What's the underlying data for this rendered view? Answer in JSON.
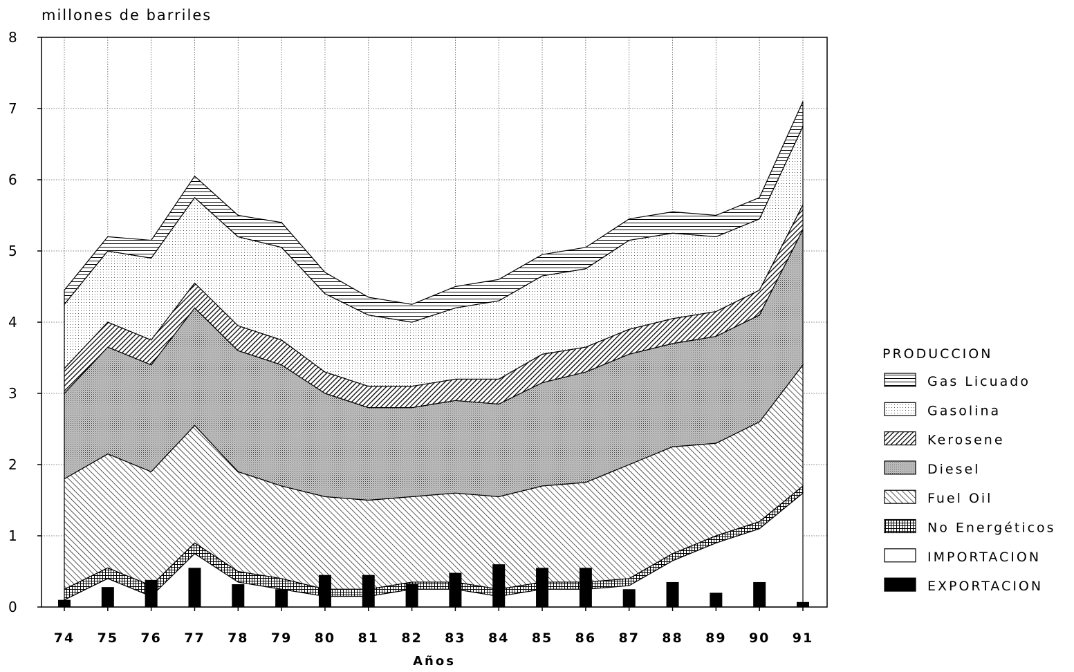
{
  "chart_data": {
    "type": "area",
    "ylabel": "millones de barriles",
    "xlabel": "Años",
    "ylim": [
      0,
      8
    ],
    "yticks": [
      "0",
      "1",
      "2",
      "3",
      "4",
      "5",
      "6",
      "7",
      "8"
    ],
    "x": [
      "74",
      "75",
      "76",
      "77",
      "78",
      "79",
      "80",
      "81",
      "82",
      "83",
      "84",
      "85",
      "86",
      "87",
      "88",
      "89",
      "90",
      "91"
    ],
    "grid": true,
    "stacked": true,
    "legend": {
      "title": "PRODUCCION",
      "placement": "right"
    },
    "series": [
      {
        "name": "IMPORTACION",
        "kind": "area",
        "color": "#ffffff",
        "values": [
          0.1,
          0.4,
          0.15,
          0.75,
          0.35,
          0.25,
          0.15,
          0.15,
          0.25,
          0.25,
          0.15,
          0.25,
          0.25,
          0.3,
          0.65,
          0.9,
          1.1,
          1.6
        ]
      },
      {
        "name": "No Energéticos",
        "kind": "area",
        "color": "#000000",
        "values": [
          0.15,
          0.15,
          0.15,
          0.15,
          0.15,
          0.15,
          0.1,
          0.1,
          0.1,
          0.1,
          0.1,
          0.1,
          0.1,
          0.1,
          0.1,
          0.1,
          0.1,
          0.1
        ]
      },
      {
        "name": "Fuel Oil",
        "kind": "area",
        "color": "#000000",
        "values": [
          1.55,
          1.6,
          1.6,
          1.65,
          1.4,
          1.3,
          1.3,
          1.25,
          1.2,
          1.25,
          1.3,
          1.35,
          1.4,
          1.6,
          1.5,
          1.3,
          1.4,
          1.7
        ]
      },
      {
        "name": "Diesel",
        "kind": "area",
        "color": "#7f7f7f",
        "values": [
          1.2,
          1.5,
          1.5,
          1.65,
          1.7,
          1.7,
          1.45,
          1.3,
          1.25,
          1.3,
          1.3,
          1.45,
          1.55,
          1.55,
          1.45,
          1.5,
          1.5,
          1.9
        ]
      },
      {
        "name": "Kerosene",
        "kind": "area",
        "color": "#000000",
        "values": [
          0.35,
          0.35,
          0.35,
          0.35,
          0.35,
          0.35,
          0.3,
          0.3,
          0.3,
          0.3,
          0.35,
          0.4,
          0.35,
          0.35,
          0.35,
          0.35,
          0.35,
          0.35
        ]
      },
      {
        "name": "Gasolina",
        "kind": "area",
        "color": "#d0d0d0",
        "values": [
          0.9,
          1.0,
          1.15,
          1.2,
          1.25,
          1.3,
          1.1,
          1.0,
          0.9,
          1.0,
          1.1,
          1.1,
          1.1,
          1.25,
          1.2,
          1.05,
          1.0,
          1.1
        ]
      },
      {
        "name": "Gas Licuado",
        "kind": "area",
        "color": "#000000",
        "values": [
          0.2,
          0.2,
          0.25,
          0.3,
          0.3,
          0.35,
          0.3,
          0.25,
          0.25,
          0.3,
          0.3,
          0.3,
          0.3,
          0.3,
          0.3,
          0.3,
          0.3,
          0.35
        ]
      },
      {
        "name": "EXPORTACION",
        "kind": "bar",
        "color": "#000000",
        "values": [
          0.1,
          0.28,
          0.38,
          0.55,
          0.32,
          0.25,
          0.45,
          0.45,
          0.32,
          0.48,
          0.6,
          0.55,
          0.55,
          0.25,
          0.35,
          0.2,
          0.35,
          0.07
        ]
      }
    ]
  }
}
